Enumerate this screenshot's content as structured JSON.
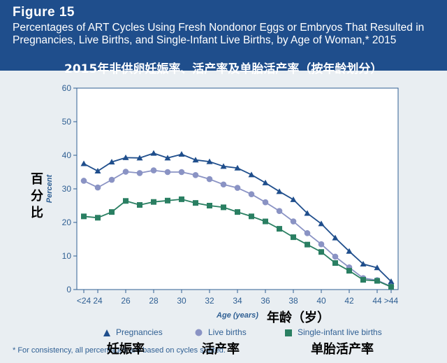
{
  "header": {
    "figure_label": "Figure 15",
    "title": "Percentages of ART Cycles Using Fresh Nondonor Eggs or Embryos That Resulted in Pregnancies, Live Births, and Single-Infant Live Births, by Age of Woman,* 2015",
    "overlay_title_cn": "2015年非供卵妊娠率、活产率及单胎活产率（按年龄划分）"
  },
  "annotations": {
    "ylabel_cn": "百分比",
    "xlabel_cn": "年龄（岁）",
    "legend_cn": [
      "妊娠率",
      "活产率",
      "单胎活产率"
    ]
  },
  "footnote": "* For consistency, all percentages are based on cycles started.",
  "chart_data": {
    "type": "line",
    "title": "Percentages of ART Cycles Using Fresh Nondonor Eggs or Embryos That Resulted in Pregnancies, Live Births, and Single-Infant Live Births, by Age of Woman,* 2015",
    "xlabel": "Age (years)",
    "ylabel": "Percent",
    "ylim": [
      0,
      60
    ],
    "yticks": [
      0,
      10,
      20,
      30,
      40,
      50,
      60
    ],
    "x": [
      "<24",
      "24",
      "25",
      "26",
      "27",
      "28",
      "29",
      "30",
      "31",
      "32",
      "33",
      "34",
      "35",
      "36",
      "37",
      "38",
      "39",
      "40",
      "41",
      "42",
      "43",
      "44",
      ">44"
    ],
    "xtick_labels": [
      "<24",
      "24",
      "26",
      "28",
      "30",
      "32",
      "34",
      "36",
      "38",
      "40",
      "42",
      "44",
      ">44"
    ],
    "grid": false,
    "legend_position": "bottom",
    "series": [
      {
        "name": "Pregnancies",
        "marker": "triangle",
        "color": "#1f4e8c",
        "values": [
          37.5,
          35.3,
          38.0,
          39.3,
          39.2,
          40.6,
          39.2,
          40.3,
          38.6,
          38.1,
          36.7,
          36.2,
          34.2,
          31.8,
          29.2,
          26.8,
          22.7,
          19.6,
          15.4,
          11.4,
          7.6,
          6.5,
          2.4
        ]
      },
      {
        "name": "Live births",
        "marker": "circle",
        "color": "#8a93c4",
        "values": [
          32.4,
          30.4,
          32.7,
          35.1,
          34.7,
          35.5,
          35.0,
          35.0,
          34.1,
          32.9,
          31.3,
          30.3,
          28.4,
          26.0,
          23.4,
          20.3,
          16.8,
          13.5,
          9.8,
          6.6,
          3.4,
          2.8,
          0.9
        ]
      },
      {
        "name": "Single-infant live births",
        "marker": "square",
        "color": "#2a7f62",
        "values": [
          21.8,
          21.4,
          23.1,
          26.4,
          25.2,
          26.1,
          26.5,
          26.9,
          25.8,
          25.0,
          24.5,
          23.1,
          21.8,
          20.3,
          18.1,
          15.6,
          13.4,
          11.2,
          7.9,
          5.6,
          2.9,
          2.6,
          0.8
        ]
      }
    ]
  }
}
